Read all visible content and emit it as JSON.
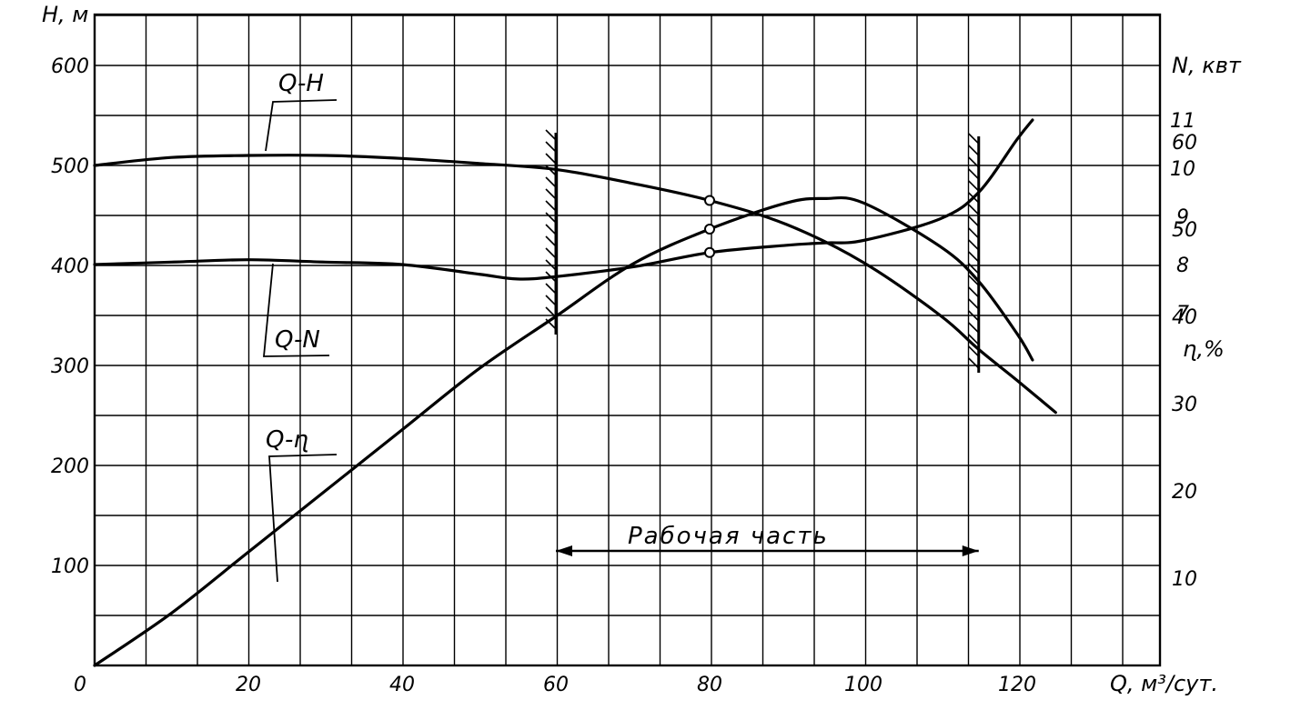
{
  "chart_data": {
    "type": "line",
    "title": "",
    "x_axis": {
      "label": "Q, м³/сут.",
      "range": [
        0,
        140
      ],
      "ticks": [
        0,
        20,
        40,
        60,
        80,
        100,
        120
      ],
      "tick_labels": [
        "0",
        "20",
        "40",
        "60",
        "80",
        "100",
        "120"
      ]
    },
    "y_axis_left": {
      "label": "H, м",
      "range": [
        0,
        600
      ],
      "ticks": [
        100,
        200,
        300,
        400,
        500,
        600
      ],
      "tick_labels": [
        "100",
        "200",
        "300",
        "400",
        "500",
        "600"
      ]
    },
    "y_axis_right_power": {
      "label": "N, квт",
      "ticks": [
        7,
        8,
        9,
        10,
        11
      ],
      "tick_labels": [
        "7",
        "8",
        "9",
        "10",
        "11"
      ]
    },
    "y_axis_right_efficiency": {
      "label": "ɳ,%",
      "ticks": [
        10,
        20,
        30,
        40,
        50,
        60
      ],
      "tick_labels": [
        "10",
        "20",
        "30",
        "40",
        "50",
        "60"
      ]
    },
    "grid": true,
    "series": [
      {
        "name": "Q-H",
        "axis": "H",
        "x": [
          0,
          10,
          20,
          30,
          40,
          50,
          60,
          70,
          80,
          90,
          100,
          110,
          115,
          120,
          125
        ],
        "y": [
          500,
          508,
          510,
          510,
          507,
          502,
          496,
          482,
          465,
          441,
          403,
          350,
          316,
          285,
          253
        ]
      },
      {
        "name": "Q-N",
        "axis": "N",
        "x": [
          0,
          10,
          20,
          30,
          40,
          50,
          55,
          60,
          70,
          80,
          90,
          95,
          100,
          110,
          115,
          120,
          122
        ],
        "y": [
          8.0,
          8.05,
          8.1,
          8.05,
          8.0,
          7.8,
          7.7,
          7.75,
          7.95,
          8.25,
          8.4,
          8.45,
          8.5,
          8.95,
          9.5,
          10.6,
          11.0
        ]
      },
      {
        "name": "Q-ɳ",
        "axis": "eta",
        "x": [
          0,
          10,
          20,
          30,
          40,
          50,
          60,
          70,
          80,
          90,
          95,
          100,
          110,
          115,
          120,
          122
        ],
        "y": [
          0,
          6,
          13,
          20,
          27,
          34,
          40,
          46,
          50,
          53,
          53.5,
          53,
          48,
          44,
          38,
          35
        ]
      }
    ],
    "marked_points": [
      {
        "series": "Q-H",
        "x": 80,
        "y": 465
      },
      {
        "series": "Q-N",
        "x": 80,
        "y": 8.25
      },
      {
        "series": "Q-ɳ",
        "x": 80,
        "y": 50
      }
    ],
    "working_range": {
      "label": "Рабочая часть",
      "x_start": 60,
      "x_end": 115
    }
  }
}
